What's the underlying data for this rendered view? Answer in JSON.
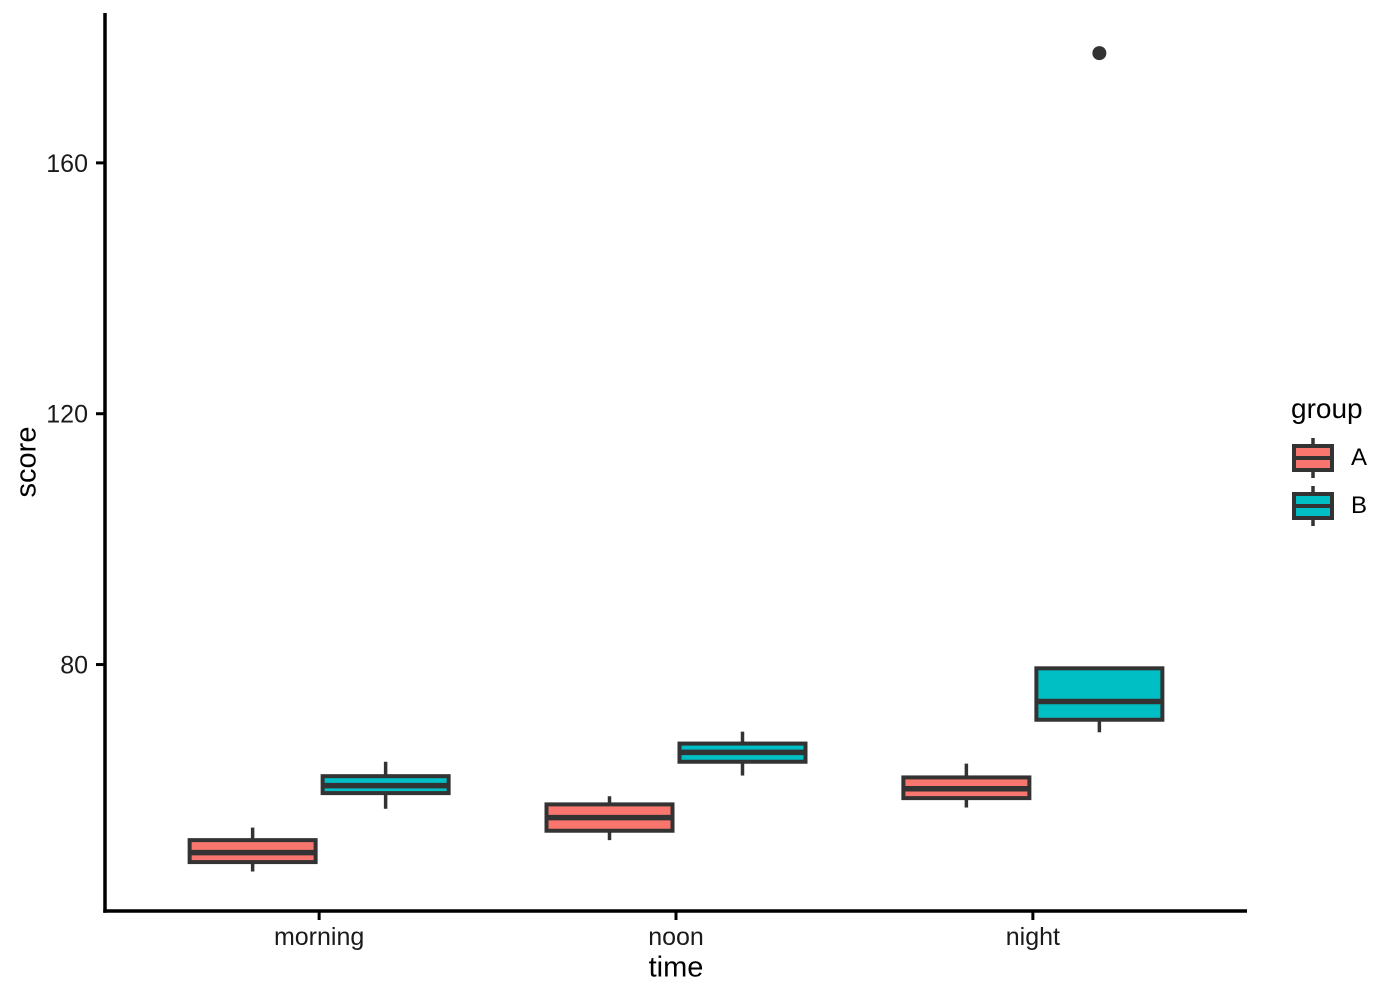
{
  "chart_data": {
    "type": "boxplot",
    "title": "",
    "xlabel": "time",
    "ylabel": "score",
    "categories": [
      "morning",
      "noon",
      "night"
    ],
    "yticks": [
      80,
      120,
      160
    ],
    "ylim": [
      40.7,
      183.9
    ],
    "grid": false,
    "background": "#FFFFFF",
    "legend": {
      "title": "group",
      "position": "right",
      "entries": [
        {
          "name": "A",
          "color": "#F8766D"
        },
        {
          "name": "B",
          "color": "#00BFC4"
        }
      ]
    },
    "series": [
      {
        "name": "A",
        "color": "#F8766D",
        "boxes": [
          {
            "category": "morning",
            "low": 47.0,
            "q1": 48.5,
            "median": 50.0,
            "q3": 52.0,
            "high": 54.0,
            "outliers": []
          },
          {
            "category": "noon",
            "low": 52.0,
            "q1": 53.5,
            "median": 55.6,
            "q3": 57.7,
            "high": 59.0,
            "outliers": []
          },
          {
            "category": "night",
            "low": 57.2,
            "q1": 58.7,
            "median": 60.2,
            "q3": 62.0,
            "high": 64.2,
            "outliers": []
          }
        ]
      },
      {
        "name": "B",
        "color": "#00BFC4",
        "boxes": [
          {
            "category": "morning",
            "low": 57.0,
            "q1": 59.5,
            "median": 60.7,
            "q3": 62.2,
            "high": 64.5,
            "outliers": []
          },
          {
            "category": "noon",
            "low": 62.3,
            "q1": 64.5,
            "median": 66.0,
            "q3": 67.4,
            "high": 69.3,
            "outliers": []
          },
          {
            "category": "night",
            "low": 69.2,
            "q1": 71.2,
            "median": 74.1,
            "q3": 79.4,
            "high": 79.4,
            "outliers": [
              177.5
            ]
          }
        ]
      }
    ],
    "style": {
      "box_stroke": "#333333",
      "outlier_color": "#333333",
      "axis_color": "#000000",
      "tick_label_color": "#1a1a1a",
      "text_color": "#000000"
    }
  }
}
